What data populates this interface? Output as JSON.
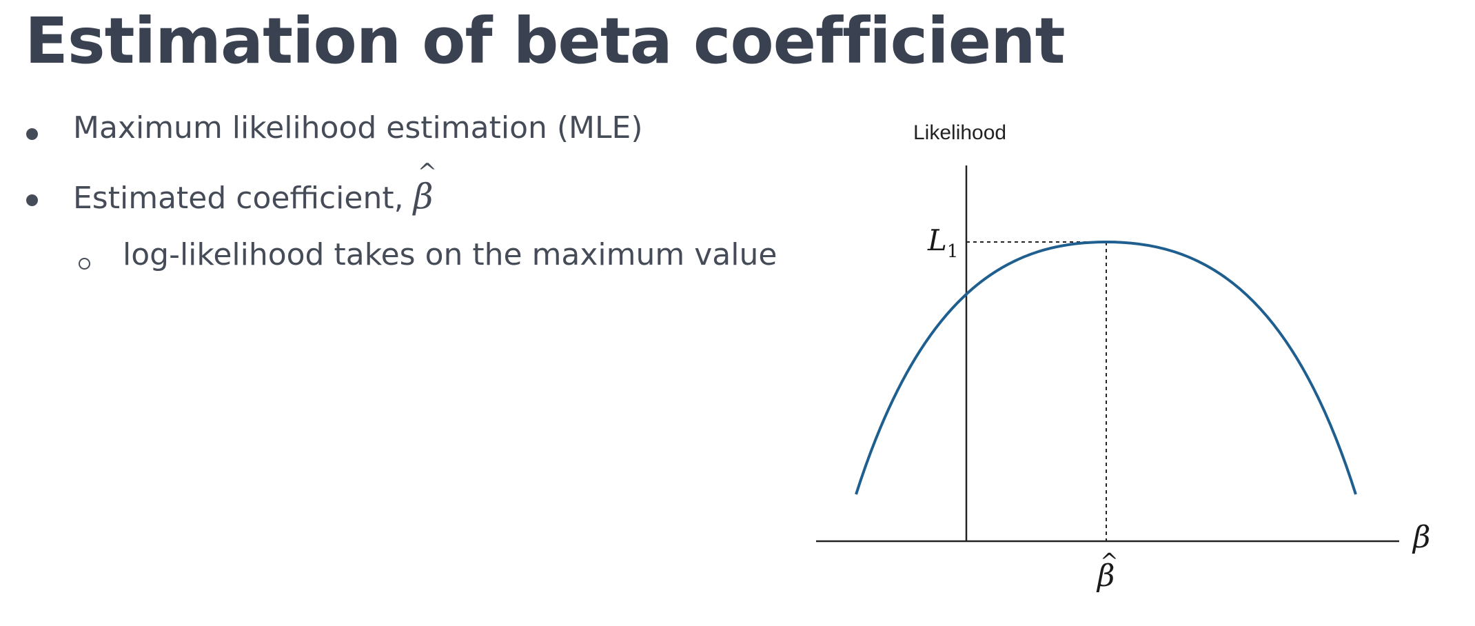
{
  "slide": {
    "title": "Estimation of beta coefficient"
  },
  "bullets": [
    {
      "text": "Maximum likelihood estimation (MLE)"
    },
    {
      "text": "Estimated coefficient, ",
      "math": "β",
      "math_hat": "^"
    }
  ],
  "sub_bullets": [
    {
      "text": "log-likelihood takes on the maximum value"
    }
  ],
  "diagram": {
    "y_axis_label": "Likelihood",
    "x_axis_label": "β",
    "peak_label": "L",
    "peak_label_subscript": "1",
    "estimate_label": "β",
    "estimate_hat": "^",
    "curve_color": "#1f5f8f",
    "axis_color": "#222222"
  }
}
